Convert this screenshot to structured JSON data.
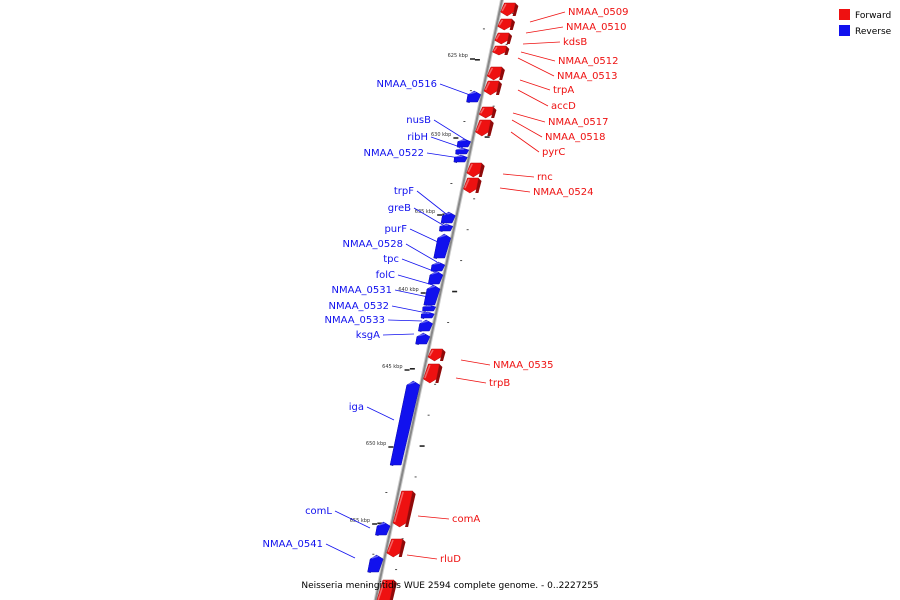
{
  "caption": "Neisseria meningitidis WUE 2594 complete genome. - 0..2227255",
  "colors": {
    "forward": "#ee1111",
    "reverse": "#1111ee",
    "axis": "#888888"
  },
  "legend": [
    {
      "label": "Forward",
      "color": "#ee1111"
    },
    {
      "label": "Reverse",
      "color": "#1111ee"
    }
  ],
  "scale_labels": [
    "625 kbp",
    "630 kbp",
    "635 kbp",
    "640 kbp",
    "645 kbp",
    "650 kbp",
    "655 kbp"
  ],
  "genes_forward": [
    "NMAA_0509",
    "NMAA_0510",
    "kdsB",
    "NMAA_0512",
    "NMAA_0513",
    "trpA",
    "accD",
    "NMAA_0517",
    "NMAA_0518",
    "pyrC",
    "rnc",
    "NMAA_0524",
    "NMAA_0535",
    "trpB",
    "comA",
    "rluD"
  ],
  "genes_reverse": [
    "NMAA_0516",
    "nusB",
    "ribH",
    "NMAA_0522",
    "trpF",
    "greB",
    "purF",
    "NMAA_0528",
    "tpc",
    "folC",
    "NMAA_0531",
    "NMAA_0532",
    "NMAA_0533",
    "ksgA",
    "iga",
    "comL",
    "NMAA_0541"
  ]
}
